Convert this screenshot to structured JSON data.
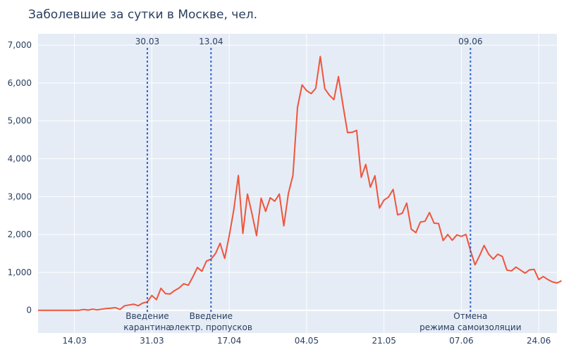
{
  "chart_data": {
    "type": "line",
    "title": "Заболевшие за сутки в Москве, чел.",
    "xlabel": "",
    "ylabel": "",
    "x_range": [
      "2020-03-06",
      "2020-06-28"
    ],
    "ylim": [
      -600,
      7300
    ],
    "grid": true,
    "x_ticks": [
      {
        "date": "2020-03-14",
        "label": "14.03"
      },
      {
        "date": "2020-03-31",
        "label": "31.03"
      },
      {
        "date": "2020-04-17",
        "label": "17.04"
      },
      {
        "date": "2020-05-04",
        "label": "04.05"
      },
      {
        "date": "2020-05-21",
        "label": "21.05"
      },
      {
        "date": "2020-06-07",
        "label": "07.06"
      },
      {
        "date": "2020-06-24",
        "label": "24.06"
      }
    ],
    "y_ticks": [
      {
        "value": 0,
        "label": "0"
      },
      {
        "value": 1000,
        "label": "1,000"
      },
      {
        "value": 2000,
        "label": "2,000"
      },
      {
        "value": 3000,
        "label": "3,000"
      },
      {
        "value": 4000,
        "label": "4,000"
      },
      {
        "value": 5000,
        "label": "5,000"
      },
      {
        "value": 6000,
        "label": "6,000"
      },
      {
        "value": 7000,
        "label": "7,000"
      }
    ],
    "series": [
      {
        "color": "#ef553b",
        "start_date": "2020-03-06",
        "values": [
          0,
          0,
          0,
          0,
          0,
          0,
          0,
          0,
          0,
          0,
          20,
          5,
          30,
          10,
          30,
          45,
          55,
          70,
          20,
          120,
          140,
          160,
          120,
          190,
          220,
          390,
          280,
          580,
          440,
          430,
          520,
          590,
          700,
          660,
          880,
          1130,
          1030,
          1300,
          1350,
          1500,
          1770,
          1370,
          1970,
          2650,
          3560,
          2030,
          3070,
          2550,
          1970,
          2960,
          2610,
          2970,
          2880,
          3070,
          2230,
          3090,
          3560,
          5360,
          5950,
          5800,
          5720,
          5860,
          6700,
          5850,
          5680,
          5560,
          6170,
          5400,
          4690,
          4700,
          4750,
          3510,
          3850,
          3250,
          3550,
          2700,
          2910,
          2990,
          3190,
          2520,
          2560,
          2830,
          2140,
          2050,
          2330,
          2350,
          2580,
          2300,
          2290,
          1840,
          2000,
          1850,
          1990,
          1950,
          2000,
          1580,
          1200,
          1440,
          1710,
          1480,
          1350,
          1480,
          1420,
          1060,
          1040,
          1140,
          1060,
          980,
          1070,
          1080,
          810,
          890,
          810,
          750,
          720,
          780
        ]
      }
    ],
    "annotations": [
      {
        "date": "2020-03-30",
        "top_label": "30.03",
        "bottom_lines": [
          "Введение",
          "карантина"
        ]
      },
      {
        "date": "2020-04-13",
        "top_label": "13.04",
        "bottom_lines": [
          "Введение",
          "электр. пропусков"
        ]
      },
      {
        "date": "2020-06-09",
        "top_label": "09.06",
        "bottom_lines": [
          "Отмена",
          "режима самоизоляции"
        ]
      }
    ],
    "colors": {
      "plot_bg": "#e5ecf6",
      "grid": "#ffffff",
      "annotation": "#3366cc",
      "text": "#2a3f5f"
    }
  }
}
